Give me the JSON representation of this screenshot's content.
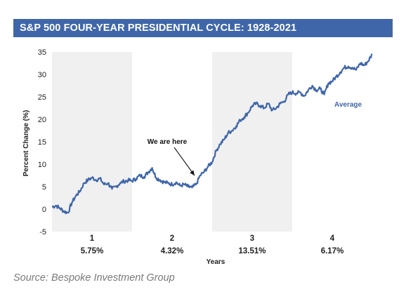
{
  "header": {
    "title": "S&P 500 FOUR-YEAR PRESIDENTIAL CYCLE: 1928-2021"
  },
  "source": "Source: Bespoke Investment Group",
  "colors": {
    "line": "#3f66a9",
    "band": "#f0f0f0",
    "header_bg": "#3f66a9"
  },
  "chart_data": {
    "type": "line",
    "title": "S&P 500 FOUR-YEAR PRESIDENTIAL CYCLE: 1928-2021",
    "xlabel": "Years",
    "ylabel": "Percent Change (%)",
    "xlim": [
      0,
      4
    ],
    "ylim": [
      -5,
      35
    ],
    "yticks": [
      -5,
      0,
      5,
      10,
      15,
      20,
      25,
      30,
      35
    ],
    "grid": false,
    "shaded_years": [
      1,
      3
    ],
    "years": [
      {
        "label": "1",
        "pct": "5.75%"
      },
      {
        "label": "2",
        "pct": "4.32%"
      },
      {
        "label": "3",
        "pct": "13.51%"
      },
      {
        "label": "4",
        "pct": "6.17%"
      }
    ],
    "annotation": {
      "text": "We are here",
      "x": 1.78,
      "y": 7.5
    },
    "series": [
      {
        "name": "Average",
        "x": [
          0,
          0.05,
          0.1,
          0.15,
          0.2,
          0.25,
          0.3,
          0.35,
          0.4,
          0.45,
          0.5,
          0.55,
          0.6,
          0.65,
          0.7,
          0.75,
          0.8,
          0.85,
          0.9,
          0.95,
          1.0,
          1.05,
          1.1,
          1.15,
          1.2,
          1.25,
          1.3,
          1.35,
          1.4,
          1.45,
          1.5,
          1.55,
          1.6,
          1.65,
          1.7,
          1.75,
          1.8,
          1.85,
          1.9,
          1.95,
          2.0,
          2.05,
          2.1,
          2.15,
          2.2,
          2.25,
          2.3,
          2.35,
          2.4,
          2.45,
          2.5,
          2.55,
          2.6,
          2.65,
          2.7,
          2.75,
          2.8,
          2.85,
          2.9,
          2.95,
          3.0,
          3.05,
          3.1,
          3.15,
          3.2,
          3.25,
          3.3,
          3.35,
          3.4,
          3.45,
          3.5,
          3.55,
          3.6,
          3.65,
          3.7,
          3.75,
          3.8,
          3.85,
          3.9,
          3.95,
          4.0
        ],
        "y": [
          0.5,
          0.8,
          0.2,
          -0.5,
          -0.8,
          1.5,
          3.0,
          4.0,
          5.8,
          6.5,
          7.0,
          6.5,
          6.8,
          5.5,
          5.8,
          4.5,
          5.0,
          5.8,
          6.2,
          6.4,
          6.3,
          6.8,
          7.5,
          7.2,
          8.2,
          9.2,
          7.0,
          6.5,
          6.0,
          5.8,
          5.5,
          6.0,
          5.2,
          5.5,
          5.0,
          4.8,
          5.5,
          7.5,
          8.3,
          9.5,
          10.5,
          13.0,
          14.5,
          15.5,
          17.0,
          17.5,
          18.5,
          19.8,
          20.5,
          21.5,
          23.0,
          23.5,
          23.0,
          22.5,
          23.5,
          22.0,
          22.5,
          23.5,
          24.0,
          25.5,
          26.0,
          25.8,
          26.0,
          25.2,
          26.5,
          27.5,
          26.5,
          26.8,
          25.5,
          28.0,
          28.5,
          29.5,
          30.5,
          31.5,
          31.8,
          31.5,
          31.0,
          32.5,
          32.0,
          33.0,
          34.5
        ]
      }
    ]
  }
}
